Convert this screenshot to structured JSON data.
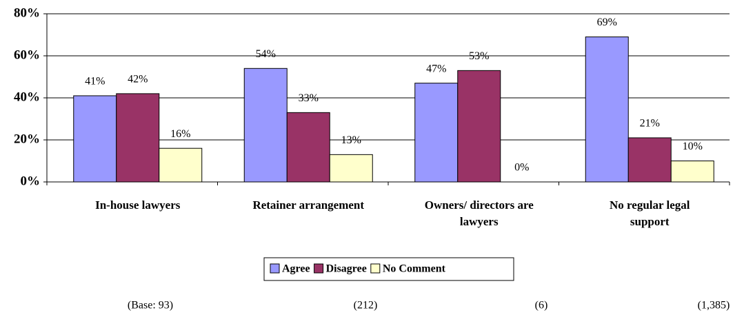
{
  "chart_data": {
    "type": "bar",
    "categories": [
      "In-house lawyers",
      "Retainer arrangement",
      "Owners/ directors are lawyers",
      "No regular legal support"
    ],
    "series": [
      {
        "name": "Agree",
        "color": "#9999ff",
        "values": [
          41,
          54,
          47,
          69
        ],
        "value_labels": [
          "41%",
          "54%",
          "47%",
          "69%"
        ]
      },
      {
        "name": "Disagree",
        "color": "#993366",
        "values": [
          42,
          33,
          53,
          21
        ],
        "value_labels": [
          "42%",
          "33%",
          "53%",
          "21%"
        ]
      },
      {
        "name": "No Comment",
        "color": "#ffffcc",
        "values": [
          16,
          13,
          0,
          10
        ],
        "value_labels": [
          "16%",
          "13%",
          "0%",
          "10%"
        ]
      }
    ],
    "ylim": [
      0,
      80
    ],
    "yticks": [
      {
        "value": 0,
        "label": "0%"
      },
      {
        "value": 20,
        "label": "20%"
      },
      {
        "value": 40,
        "label": "40%"
      },
      {
        "value": 60,
        "label": "60%"
      },
      {
        "value": 80,
        "label": "80%"
      }
    ],
    "grid": true,
    "legend": "bottom",
    "base_labels": [
      "(Base: 93)",
      "(212)",
      "(6)",
      "(1,385)"
    ]
  }
}
